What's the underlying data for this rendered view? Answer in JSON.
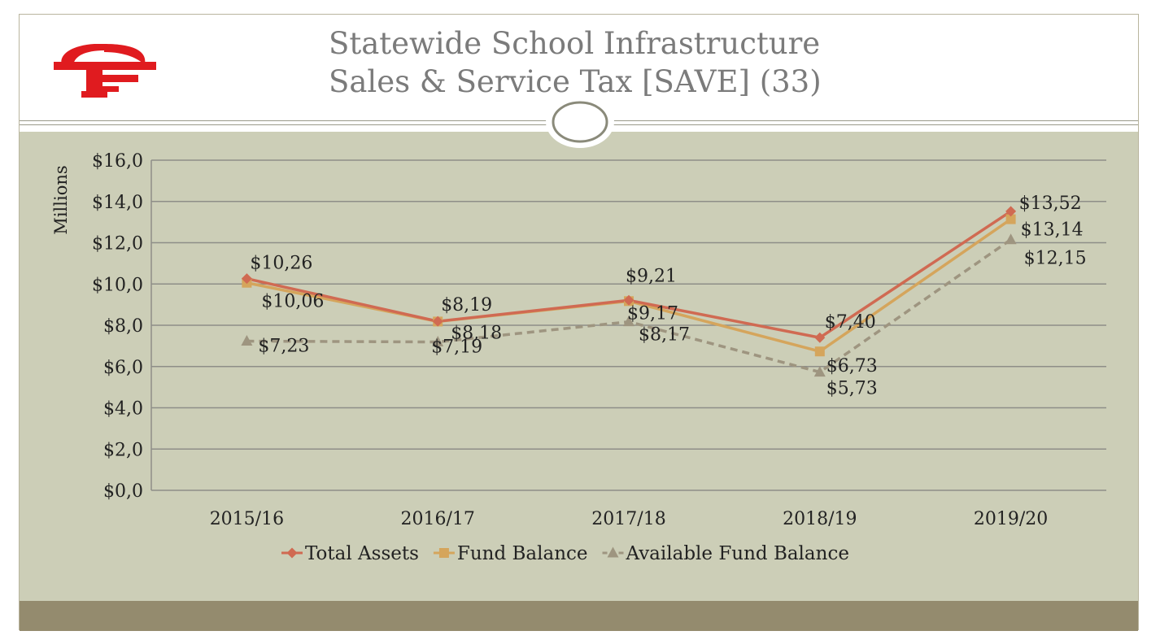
{
  "header": {
    "title_line1": "Statewide School Infrastructure",
    "title_line2": "Sales & Service Tax [SAVE] (33)",
    "brand_color": "#e01b1f"
  },
  "chart_data": {
    "type": "line",
    "title": "",
    "ylabel": "Millions",
    "xlabel": "",
    "categories": [
      "2015/16",
      "2016/17",
      "2017/18",
      "2018/19",
      "2019/20"
    ],
    "ylim": [
      0,
      16
    ],
    "ytick_labels": [
      "$0,0",
      "$2,0",
      "$4,0",
      "$6,0",
      "$8,0",
      "$10,0",
      "$12,0",
      "$14,0",
      "$16,0"
    ],
    "grid": true,
    "legend_position": "bottom",
    "series": [
      {
        "name": "Total Assets",
        "values": [
          10.26,
          8.19,
          9.21,
          7.4,
          13.52
        ],
        "labels": [
          "$10,26",
          "$8,19",
          "$9,21",
          "$7,40",
          "$13,52"
        ],
        "color": "#d06a52",
        "marker": "diamond",
        "dash": "solid"
      },
      {
        "name": "Fund Balance",
        "values": [
          10.06,
          8.18,
          9.17,
          6.73,
          13.14
        ],
        "labels": [
          "$10,06",
          "$8,18",
          "$9,17",
          "$6,73",
          "$13,14"
        ],
        "color": "#d5a55c",
        "marker": "square",
        "dash": "solid"
      },
      {
        "name": "Available Fund Balance",
        "values": [
          7.23,
          7.19,
          8.17,
          5.73,
          12.15
        ],
        "labels": [
          "$7,23",
          "$7,19",
          "$8,17",
          "$5,73",
          "$12,15"
        ],
        "color": "#9e9580",
        "marker": "triangle",
        "dash": "dashed"
      }
    ]
  }
}
